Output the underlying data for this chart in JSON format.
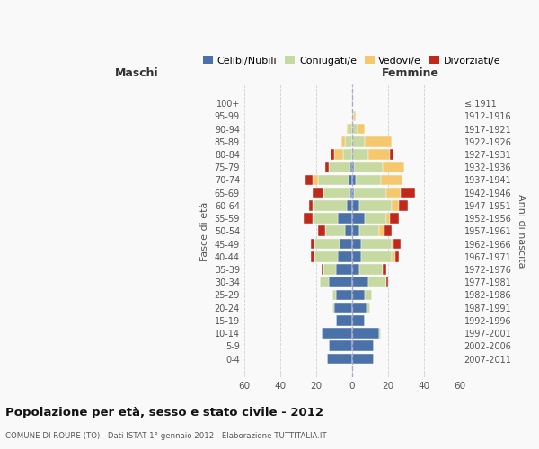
{
  "age_groups": [
    "0-4",
    "5-9",
    "10-14",
    "15-19",
    "20-24",
    "25-29",
    "30-34",
    "35-39",
    "40-44",
    "45-49",
    "50-54",
    "55-59",
    "60-64",
    "65-69",
    "70-74",
    "75-79",
    "80-84",
    "85-89",
    "90-94",
    "95-99",
    "100+"
  ],
  "birth_years": [
    "2007-2011",
    "2002-2006",
    "1997-2001",
    "1992-1996",
    "1987-1991",
    "1982-1986",
    "1977-1981",
    "1972-1976",
    "1967-1971",
    "1962-1966",
    "1957-1961",
    "1952-1956",
    "1947-1951",
    "1942-1946",
    "1937-1941",
    "1932-1936",
    "1927-1931",
    "1922-1926",
    "1917-1921",
    "1912-1916",
    "≤ 1911"
  ],
  "male_celibi": [
    14,
    13,
    17,
    9,
    10,
    9,
    13,
    9,
    8,
    7,
    4,
    8,
    3,
    1,
    2,
    1,
    0,
    0,
    0,
    0,
    0
  ],
  "male_coniugati": [
    0,
    0,
    0,
    0,
    1,
    2,
    5,
    7,
    13,
    14,
    11,
    14,
    19,
    15,
    17,
    12,
    5,
    4,
    2,
    0,
    0
  ],
  "male_vedovi": [
    0,
    0,
    0,
    0,
    0,
    0,
    0,
    0,
    0,
    0,
    0,
    0,
    0,
    0,
    3,
    0,
    5,
    2,
    1,
    0,
    0
  ],
  "male_divorziati": [
    0,
    0,
    0,
    0,
    0,
    0,
    0,
    1,
    2,
    2,
    4,
    5,
    2,
    6,
    4,
    2,
    2,
    0,
    0,
    0,
    0
  ],
  "female_celibi": [
    12,
    12,
    15,
    7,
    8,
    7,
    9,
    4,
    5,
    5,
    4,
    7,
    4,
    1,
    2,
    1,
    0,
    0,
    0,
    0,
    0
  ],
  "female_coniugati": [
    0,
    0,
    1,
    0,
    2,
    4,
    10,
    13,
    17,
    17,
    11,
    12,
    18,
    18,
    14,
    16,
    9,
    7,
    3,
    1,
    0
  ],
  "female_vedovi": [
    0,
    0,
    0,
    0,
    0,
    0,
    0,
    0,
    2,
    1,
    3,
    2,
    4,
    8,
    12,
    12,
    12,
    15,
    4,
    1,
    0
  ],
  "female_divorziati": [
    0,
    0,
    0,
    0,
    0,
    0,
    1,
    2,
    2,
    4,
    4,
    5,
    5,
    8,
    0,
    0,
    2,
    0,
    0,
    0,
    0
  ],
  "colors": {
    "celibi": "#4a72a8",
    "coniugati": "#c5d9a0",
    "vedovi": "#f5c86e",
    "divorziati": "#c0281c"
  },
  "title": "Popolazione per età, sesso e stato civile - 2012",
  "subtitle": "COMUNE DI ROURE (TO) - Dati ISTAT 1° gennaio 2012 - Elaborazione TUTTITALIA.IT",
  "xlabel_left": "Maschi",
  "xlabel_right": "Femmine",
  "ylabel_left": "Fasce di età",
  "ylabel_right": "Anni di nascita",
  "xlim": 60,
  "background_color": "#f9f9f9",
  "grid_color": "#d0d0d0"
}
